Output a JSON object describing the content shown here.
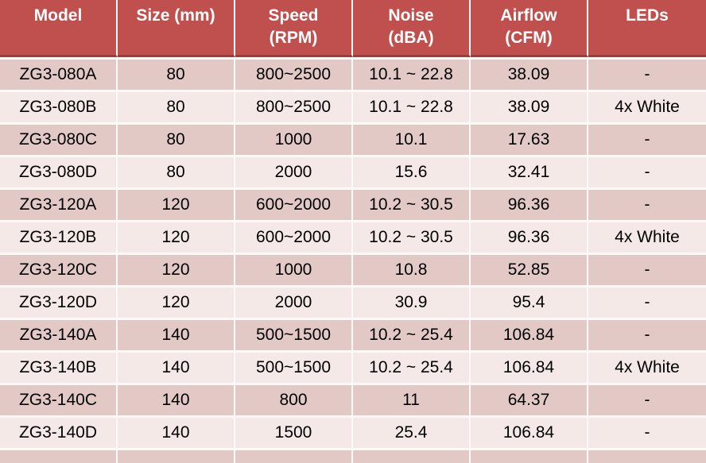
{
  "table": {
    "columns": [
      {
        "line1": "Model",
        "line2": ""
      },
      {
        "line1": "Size (mm)",
        "line2": ""
      },
      {
        "line1": "Speed",
        "line2": "(RPM)"
      },
      {
        "line1": "Noise",
        "line2": "(dBA)"
      },
      {
        "line1": "Airflow",
        "line2": "(CFM)"
      },
      {
        "line1": "LEDs",
        "line2": ""
      }
    ],
    "rows": [
      [
        "ZG3-080A",
        "80",
        "800~2500",
        "10.1 ~ 22.8",
        "38.09",
        "-"
      ],
      [
        "ZG3-080B",
        "80",
        "800~2500",
        "10.1 ~ 22.8",
        "38.09",
        "4x White"
      ],
      [
        "ZG3-080C",
        "80",
        "1000",
        "10.1",
        "17.63",
        "-"
      ],
      [
        "ZG3-080D",
        "80",
        "2000",
        "15.6",
        "32.41",
        "-"
      ],
      [
        "ZG3-120A",
        "120",
        "600~2000",
        "10.2 ~ 30.5",
        "96.36",
        "-"
      ],
      [
        "ZG3-120B",
        "120",
        "600~2000",
        "10.2 ~ 30.5",
        "96.36",
        "4x White"
      ],
      [
        "ZG3-120C",
        "120",
        "1000",
        "10.8",
        "52.85",
        "-"
      ],
      [
        "ZG3-120D",
        "120",
        "2000",
        "30.9",
        "95.4",
        "-"
      ],
      [
        "ZG3-140A",
        "140",
        "500~1500",
        "10.2 ~ 25.4",
        "106.84",
        "-"
      ],
      [
        "ZG3-140B",
        "140",
        "500~1500",
        "10.2 ~ 25.4",
        "106.84",
        "4x White"
      ],
      [
        "ZG3-140C",
        "140",
        "800",
        "11",
        "64.37",
        "-"
      ],
      [
        "ZG3-140D",
        "140",
        "1500",
        "25.4",
        "106.84",
        "-"
      ]
    ]
  },
  "colors": {
    "header_bg": "#C0504D",
    "header_text": "#FFFFFF",
    "header_border": "#9A3E3B",
    "band_dark": "#E2C9C6",
    "band_light": "#F4E9E6",
    "gridline": "#FCFAF8",
    "cell_text": "#000000"
  }
}
